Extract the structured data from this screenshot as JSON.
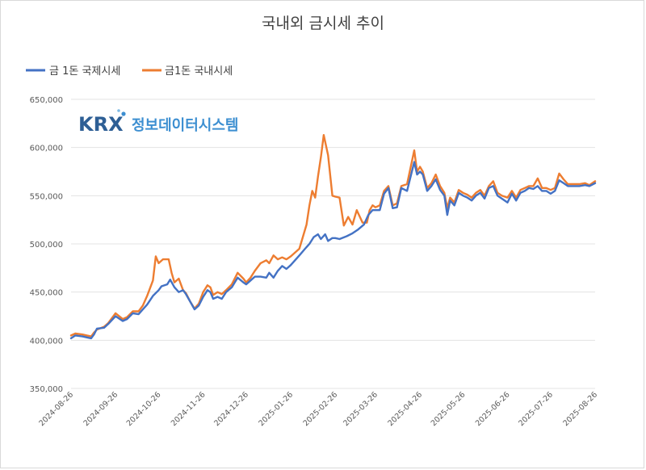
{
  "chart_data": {
    "type": "line",
    "title": "국내외 금시세 추이",
    "legend_position": "top-left",
    "grid": "horizontal",
    "ylim": [
      350000,
      650000
    ],
    "yticks": [
      350000,
      400000,
      450000,
      500000,
      550000,
      600000,
      650000
    ],
    "ytick_labels": [
      "350,000",
      "400,000",
      "450,000",
      "500,000",
      "550,000",
      "600,000",
      "650,000"
    ],
    "x_start": "2024-08-26",
    "x_end": "2025-08-26",
    "xtick_labels": [
      "2024-08-26",
      "2024-09-26",
      "2024-10-26",
      "2024-11-26",
      "2024-12-26",
      "2025-01-26",
      "2025-02-26",
      "2025-03-26",
      "2025-04-26",
      "2025-05-26",
      "2025-06-26",
      "2025-07-26",
      "2025-08-26"
    ],
    "watermark": {
      "brand": "KRX",
      "text": "정보데이터시스템"
    },
    "series": [
      {
        "name": "금 1돈 국제시세",
        "color": "#4472c4",
        "points": [
          [
            "2024-08-26",
            402000
          ],
          [
            "2024-08-29",
            405000
          ],
          [
            "2024-09-03",
            404000
          ],
          [
            "2024-09-06",
            403000
          ],
          [
            "2024-09-09",
            402000
          ],
          [
            "2024-09-11",
            406000
          ],
          [
            "2024-09-13",
            412000
          ],
          [
            "2024-09-18",
            413000
          ],
          [
            "2024-09-21",
            417000
          ],
          [
            "2024-09-26",
            425000
          ],
          [
            "2024-10-01",
            420000
          ],
          [
            "2024-10-04",
            422000
          ],
          [
            "2024-10-08",
            428000
          ],
          [
            "2024-10-12",
            427000
          ],
          [
            "2024-10-15",
            432000
          ],
          [
            "2024-10-18",
            437000
          ],
          [
            "2024-10-22",
            446000
          ],
          [
            "2024-10-26",
            452000
          ],
          [
            "2024-10-28",
            456000
          ],
          [
            "2024-11-01",
            458000
          ],
          [
            "2024-11-03",
            463000
          ],
          [
            "2024-11-06",
            455000
          ],
          [
            "2024-11-09",
            450000
          ],
          [
            "2024-11-12",
            452000
          ],
          [
            "2024-11-14",
            448000
          ],
          [
            "2024-11-17",
            440000
          ],
          [
            "2024-11-20",
            432000
          ],
          [
            "2024-11-23",
            436000
          ],
          [
            "2024-11-26",
            445000
          ],
          [
            "2024-11-29",
            452000
          ],
          [
            "2024-12-01",
            450000
          ],
          [
            "2024-12-03",
            443000
          ],
          [
            "2024-12-06",
            445000
          ],
          [
            "2024-12-09",
            443000
          ],
          [
            "2024-12-12",
            450000
          ],
          [
            "2024-12-16",
            455000
          ],
          [
            "2024-12-20",
            465000
          ],
          [
            "2024-12-24",
            460000
          ],
          [
            "2024-12-26",
            458000
          ],
          [
            "2024-12-29",
            462000
          ],
          [
            "2025-01-01",
            466000
          ],
          [
            "2025-01-05",
            466000
          ],
          [
            "2025-01-09",
            465000
          ],
          [
            "2025-01-11",
            470000
          ],
          [
            "2025-01-14",
            465000
          ],
          [
            "2025-01-17",
            472000
          ],
          [
            "2025-01-20",
            477000
          ],
          [
            "2025-01-23",
            474000
          ],
          [
            "2025-01-26",
            478000
          ],
          [
            "2025-02-01",
            488000
          ],
          [
            "2025-02-05",
            495000
          ],
          [
            "2025-02-08",
            500000
          ],
          [
            "2025-02-11",
            507000
          ],
          [
            "2025-02-14",
            510000
          ],
          [
            "2025-02-16",
            505000
          ],
          [
            "2025-02-19",
            510000
          ],
          [
            "2025-02-21",
            503000
          ],
          [
            "2025-02-24",
            506000
          ],
          [
            "2025-02-26",
            506000
          ],
          [
            "2025-03-01",
            505000
          ],
          [
            "2025-03-06",
            508000
          ],
          [
            "2025-03-10",
            511000
          ],
          [
            "2025-03-14",
            515000
          ],
          [
            "2025-03-18",
            520000
          ],
          [
            "2025-03-21",
            530000
          ],
          [
            "2025-03-24",
            535000
          ],
          [
            "2025-03-26",
            535000
          ],
          [
            "2025-03-29",
            535000
          ],
          [
            "2025-04-01",
            552000
          ],
          [
            "2025-04-04",
            558000
          ],
          [
            "2025-04-07",
            537000
          ],
          [
            "2025-04-10",
            538000
          ],
          [
            "2025-04-13",
            558000
          ],
          [
            "2025-04-17",
            555000
          ],
          [
            "2025-04-22",
            585000
          ],
          [
            "2025-04-24",
            572000
          ],
          [
            "2025-04-26",
            575000
          ],
          [
            "2025-04-28",
            572000
          ],
          [
            "2025-05-01",
            555000
          ],
          [
            "2025-05-04",
            560000
          ],
          [
            "2025-05-07",
            567000
          ],
          [
            "2025-05-10",
            556000
          ],
          [
            "2025-05-13",
            550000
          ],
          [
            "2025-05-15",
            530000
          ],
          [
            "2025-05-17",
            545000
          ],
          [
            "2025-05-20",
            540000
          ],
          [
            "2025-05-23",
            553000
          ],
          [
            "2025-05-26",
            550000
          ],
          [
            "2025-05-29",
            548000
          ],
          [
            "2025-06-01",
            545000
          ],
          [
            "2025-06-04",
            550000
          ],
          [
            "2025-06-07",
            553000
          ],
          [
            "2025-06-10",
            547000
          ],
          [
            "2025-06-13",
            558000
          ],
          [
            "2025-06-16",
            560000
          ],
          [
            "2025-06-19",
            550000
          ],
          [
            "2025-06-22",
            547000
          ],
          [
            "2025-06-26",
            543000
          ],
          [
            "2025-06-29",
            552000
          ],
          [
            "2025-07-02",
            545000
          ],
          [
            "2025-07-05",
            553000
          ],
          [
            "2025-07-08",
            555000
          ],
          [
            "2025-07-11",
            558000
          ],
          [
            "2025-07-14",
            557000
          ],
          [
            "2025-07-17",
            560000
          ],
          [
            "2025-07-20",
            555000
          ],
          [
            "2025-07-23",
            555000
          ],
          [
            "2025-07-26",
            552000
          ],
          [
            "2025-07-29",
            555000
          ],
          [
            "2025-08-01",
            566000
          ],
          [
            "2025-08-04",
            563000
          ],
          [
            "2025-08-07",
            560000
          ],
          [
            "2025-08-11",
            560000
          ],
          [
            "2025-08-15",
            560000
          ],
          [
            "2025-08-19",
            561000
          ],
          [
            "2025-08-22",
            560000
          ],
          [
            "2025-08-26",
            563000
          ]
        ]
      },
      {
        "name": "금1돈 국내시세",
        "color": "#ed7d31",
        "points": [
          [
            "2024-08-26",
            405000
          ],
          [
            "2024-08-29",
            407000
          ],
          [
            "2024-09-03",
            406000
          ],
          [
            "2024-09-06",
            405000
          ],
          [
            "2024-09-09",
            404000
          ],
          [
            "2024-09-11",
            408000
          ],
          [
            "2024-09-13",
            411000
          ],
          [
            "2024-09-18",
            414000
          ],
          [
            "2024-09-21",
            418000
          ],
          [
            "2024-09-26",
            428000
          ],
          [
            "2024-10-01",
            422000
          ],
          [
            "2024-10-04",
            424000
          ],
          [
            "2024-10-08",
            430000
          ],
          [
            "2024-10-12",
            430000
          ],
          [
            "2024-10-15",
            436000
          ],
          [
            "2024-10-18",
            446000
          ],
          [
            "2024-10-22",
            462000
          ],
          [
            "2024-10-24",
            487000
          ],
          [
            "2024-10-26",
            480000
          ],
          [
            "2024-10-29",
            484000
          ],
          [
            "2024-11-02",
            484000
          ],
          [
            "2024-11-04",
            470000
          ],
          [
            "2024-11-06",
            460000
          ],
          [
            "2024-11-09",
            464000
          ],
          [
            "2024-11-12",
            452000
          ],
          [
            "2024-11-14",
            449000
          ],
          [
            "2024-11-17",
            440000
          ],
          [
            "2024-11-20",
            433000
          ],
          [
            "2024-11-23",
            438000
          ],
          [
            "2024-11-26",
            450000
          ],
          [
            "2024-11-29",
            457000
          ],
          [
            "2024-12-01",
            455000
          ],
          [
            "2024-12-03",
            447000
          ],
          [
            "2024-12-06",
            450000
          ],
          [
            "2024-12-09",
            448000
          ],
          [
            "2024-12-12",
            452000
          ],
          [
            "2024-12-16",
            458000
          ],
          [
            "2024-12-20",
            470000
          ],
          [
            "2024-12-24",
            464000
          ],
          [
            "2024-12-26",
            460000
          ],
          [
            "2024-12-29",
            465000
          ],
          [
            "2025-01-01",
            472000
          ],
          [
            "2025-01-05",
            480000
          ],
          [
            "2025-01-09",
            483000
          ],
          [
            "2025-01-11",
            480000
          ],
          [
            "2025-01-14",
            488000
          ],
          [
            "2025-01-17",
            484000
          ],
          [
            "2025-01-20",
            486000
          ],
          [
            "2025-01-23",
            484000
          ],
          [
            "2025-01-26",
            487000
          ],
          [
            "2025-02-01",
            495000
          ],
          [
            "2025-02-03",
            505000
          ],
          [
            "2025-02-06",
            520000
          ],
          [
            "2025-02-08",
            540000
          ],
          [
            "2025-02-10",
            555000
          ],
          [
            "2025-02-12",
            548000
          ],
          [
            "2025-02-14",
            570000
          ],
          [
            "2025-02-16",
            590000
          ],
          [
            "2025-02-18",
            613000
          ],
          [
            "2025-02-21",
            592000
          ],
          [
            "2025-02-24",
            550000
          ],
          [
            "2025-02-26",
            549000
          ],
          [
            "2025-03-01",
            548000
          ],
          [
            "2025-03-04",
            519000
          ],
          [
            "2025-03-07",
            528000
          ],
          [
            "2025-03-10",
            520000
          ],
          [
            "2025-03-13",
            535000
          ],
          [
            "2025-03-17",
            522000
          ],
          [
            "2025-03-20",
            522000
          ],
          [
            "2025-03-22",
            535000
          ],
          [
            "2025-03-24",
            540000
          ],
          [
            "2025-03-26",
            538000
          ],
          [
            "2025-03-29",
            540000
          ],
          [
            "2025-04-01",
            555000
          ],
          [
            "2025-04-04",
            560000
          ],
          [
            "2025-04-07",
            540000
          ],
          [
            "2025-04-10",
            542000
          ],
          [
            "2025-04-13",
            560000
          ],
          [
            "2025-04-17",
            562000
          ],
          [
            "2025-04-22",
            597000
          ],
          [
            "2025-04-24",
            575000
          ],
          [
            "2025-04-26",
            580000
          ],
          [
            "2025-04-28",
            575000
          ],
          [
            "2025-05-01",
            558000
          ],
          [
            "2025-05-04",
            563000
          ],
          [
            "2025-05-07",
            572000
          ],
          [
            "2025-05-10",
            560000
          ],
          [
            "2025-05-13",
            553000
          ],
          [
            "2025-05-15",
            537000
          ],
          [
            "2025-05-17",
            548000
          ],
          [
            "2025-05-20",
            543000
          ],
          [
            "2025-05-23",
            556000
          ],
          [
            "2025-05-26",
            553000
          ],
          [
            "2025-05-29",
            551000
          ],
          [
            "2025-06-01",
            548000
          ],
          [
            "2025-06-04",
            553000
          ],
          [
            "2025-06-07",
            556000
          ],
          [
            "2025-06-10",
            550000
          ],
          [
            "2025-06-13",
            560000
          ],
          [
            "2025-06-16",
            565000
          ],
          [
            "2025-06-19",
            553000
          ],
          [
            "2025-06-22",
            550000
          ],
          [
            "2025-06-26",
            548000
          ],
          [
            "2025-06-29",
            555000
          ],
          [
            "2025-07-02",
            548000
          ],
          [
            "2025-07-05",
            556000
          ],
          [
            "2025-07-08",
            558000
          ],
          [
            "2025-07-11",
            560000
          ],
          [
            "2025-07-14",
            560000
          ],
          [
            "2025-07-17",
            568000
          ],
          [
            "2025-07-20",
            558000
          ],
          [
            "2025-07-23",
            558000
          ],
          [
            "2025-07-26",
            556000
          ],
          [
            "2025-07-29",
            558000
          ],
          [
            "2025-08-01",
            573000
          ],
          [
            "2025-08-04",
            567000
          ],
          [
            "2025-08-07",
            562000
          ],
          [
            "2025-08-11",
            562000
          ],
          [
            "2025-08-15",
            562000
          ],
          [
            "2025-08-19",
            563000
          ],
          [
            "2025-08-22",
            561000
          ],
          [
            "2025-08-26",
            565000
          ]
        ]
      }
    ]
  }
}
